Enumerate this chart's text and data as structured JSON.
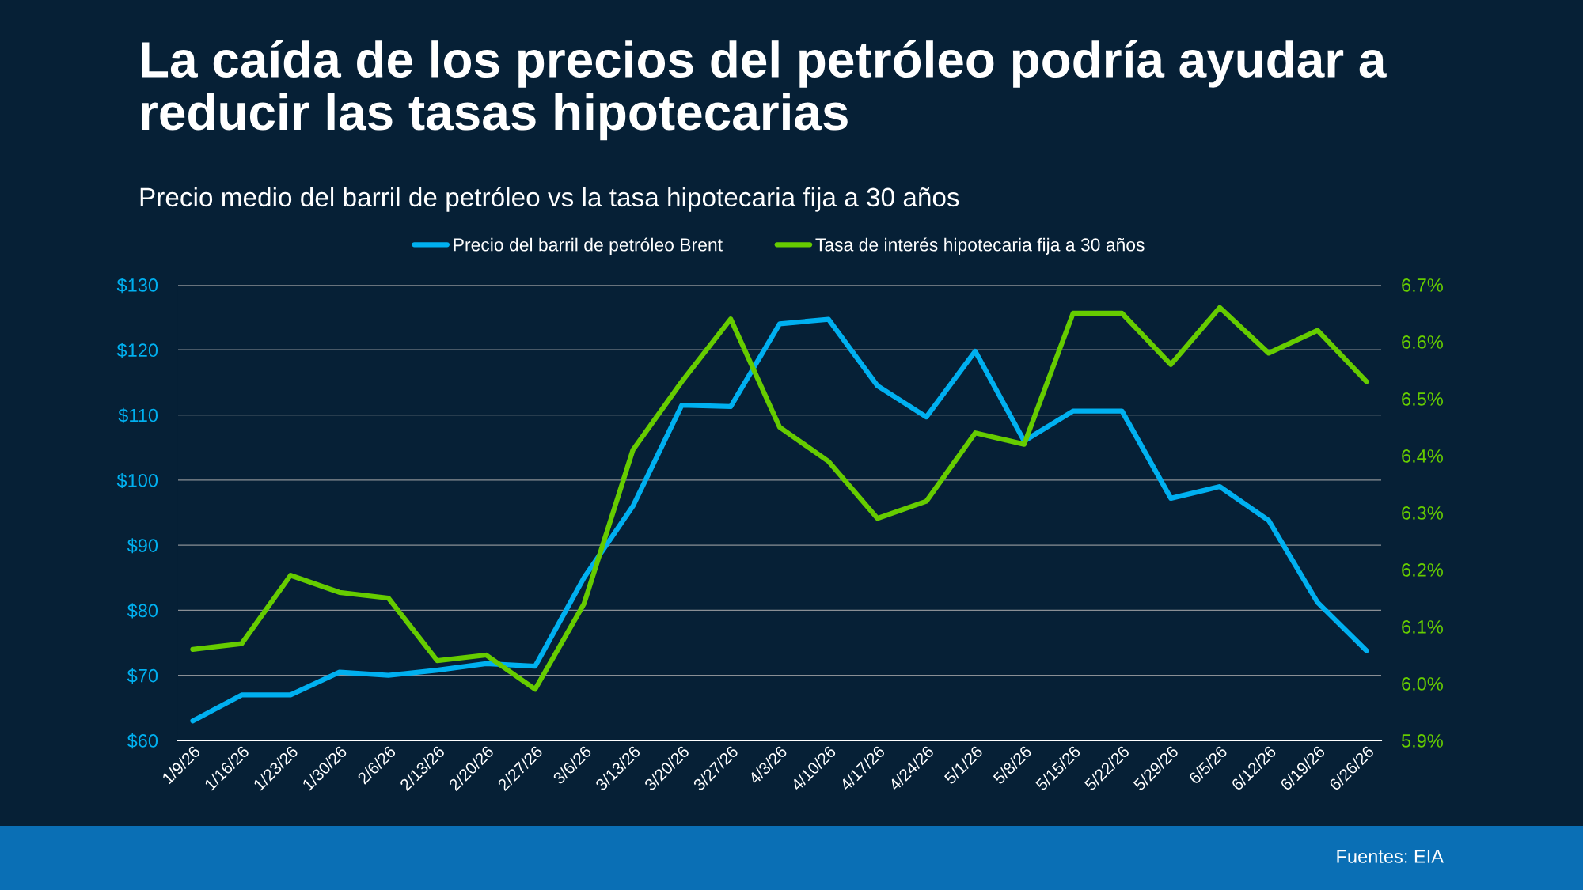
{
  "chart_data": {
    "type": "line",
    "title": "La caída de los precios del petróleo podría ayudar a\nreducir las tasas hipotecarias",
    "subtitle": "Precio medio del barril de petróleo vs la tasa hipotecaria fija a 30 años",
    "categories": [
      "1/9/26",
      "1/16/26",
      "1/23/26",
      "1/30/26",
      "2/6/26",
      "2/13/26",
      "2/20/26",
      "2/27/26",
      "3/6/26",
      "3/13/26",
      "3/20/26",
      "3/27/26",
      "4/3/26",
      "4/10/26",
      "4/17/26",
      "4/24/26",
      "5/1/26",
      "5/8/26",
      "5/15/26",
      "5/22/26",
      "5/29/26",
      "6/5/26",
      "6/12/26",
      "6/19/26",
      "6/26/26"
    ],
    "series": [
      {
        "name": "Precio del barril de petróleo Brent",
        "color": "#00b0f0",
        "values": [
          63,
          67,
          67,
          70.5,
          70,
          70.8,
          71.8,
          71.4,
          85,
          96,
          111.5,
          111.3,
          124,
          124.7,
          114.5,
          109.7,
          119.8,
          106,
          110.6,
          110.6,
          97.2,
          99,
          93.8,
          81.2,
          73.8
        ]
      },
      {
        "name": "Tasa de interés hipotecaria fija a 30 años",
        "color": "#66cc00",
        "axis": "y2",
        "values": [
          6.06,
          6.07,
          6.19,
          6.16,
          6.15,
          6.04,
          6.05,
          5.99,
          6.14,
          6.41,
          6.53,
          6.64,
          6.45,
          6.39,
          6.29,
          6.32,
          6.44,
          6.42,
          6.65,
          6.65,
          6.56,
          6.66,
          6.58,
          6.62,
          6.53
        ]
      }
    ],
    "ylim": [
      60,
      130
    ],
    "yticks": [
      {
        "value": 60,
        "label": "$60"
      },
      {
        "value": 70,
        "label": "$70"
      },
      {
        "value": 80,
        "label": "$80"
      },
      {
        "value": 90,
        "label": "$90"
      },
      {
        "value": 100,
        "label": "$100"
      },
      {
        "value": 110,
        "label": "$110"
      },
      {
        "value": 120,
        "label": "$120"
      },
      {
        "value": 130,
        "label": "$130"
      }
    ],
    "y2lim": [
      5.9,
      6.7
    ],
    "y2ticks": [
      {
        "value": 5.9,
        "label": "5.9%"
      },
      {
        "value": 6.0,
        "label": "6.0%"
      },
      {
        "value": 6.1,
        "label": "6.1%"
      },
      {
        "value": 6.2,
        "label": "6.2%"
      },
      {
        "value": 6.3,
        "label": "6.3%"
      },
      {
        "value": 6.4,
        "label": "6.4%"
      },
      {
        "value": 6.5,
        "label": "6.5%"
      },
      {
        "value": 6.6,
        "label": "6.6%"
      },
      {
        "value": 6.7,
        "label": "6.7%"
      }
    ],
    "grid": "y",
    "legend": "top",
    "marker": "none",
    "line_style": "solid",
    "annotations": [
      "Fuentes: EIA"
    ]
  }
}
